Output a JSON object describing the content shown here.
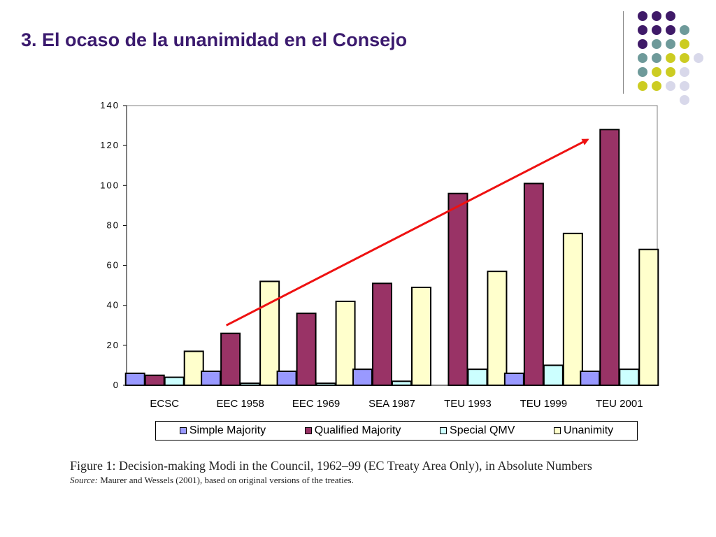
{
  "slide": {
    "title": "3. El ocaso de la unanimidad en el Consejo"
  },
  "chart_data": {
    "type": "bar",
    "categories": [
      "ECSC",
      "EEC 1958",
      "EEC 1969",
      "SEA 1987",
      "TEU 1993",
      "TEU 1999",
      "TEU 2001"
    ],
    "series": [
      {
        "name": "Simple Majority",
        "color": "#9999ff",
        "values": [
          6,
          7,
          7,
          8,
          0,
          6,
          7
        ]
      },
      {
        "name": "Qualified Majority",
        "color": "#993366",
        "values": [
          5,
          26,
          36,
          51,
          96,
          101,
          128
        ]
      },
      {
        "name": "Special QMV",
        "color": "#ccffff",
        "values": [
          4,
          1,
          1,
          2,
          8,
          10,
          8
        ]
      },
      {
        "name": "Unanimity",
        "color": "#ffffcc",
        "values": [
          17,
          52,
          42,
          49,
          57,
          76,
          68
        ]
      }
    ],
    "ylim": [
      0,
      140
    ],
    "yticks": [
      "0",
      "20",
      "40",
      "60",
      "80",
      "100",
      "120",
      "140"
    ],
    "xlabel": "",
    "ylabel": "",
    "grid": false,
    "legend_position": "bottom",
    "annotation": {
      "type": "trend-arrow",
      "color": "#ee1111",
      "from": {
        "category": "EEC 1958",
        "value": 30
      },
      "to": {
        "category": "TEU 2001",
        "value": 123
      }
    }
  },
  "caption": {
    "main": "Figure 1: Decision-making Modi in the Council, 1962–99 (EC Treaty Area Only), in Absolute Numbers",
    "source_key": "Source:",
    "source_text": " Maurer and Wessels (2001), based on original versions of the treaties."
  },
  "decoration": {
    "colors": {
      "purple": "#3f1a68",
      "teal": "#6e9a9a",
      "yellow": "#cccc22",
      "lavender": "#d8d8ea"
    }
  }
}
